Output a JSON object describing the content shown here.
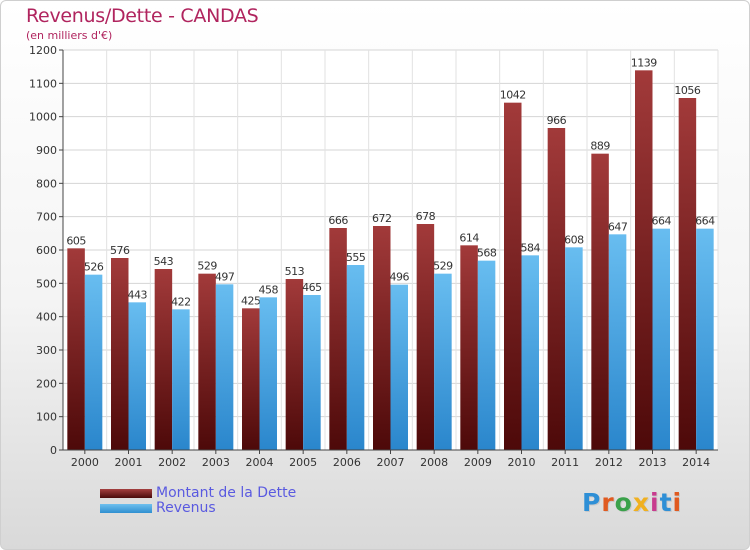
{
  "title": "Revenus/Dette - CANDAS",
  "subtitle": "(en milliers d'€)",
  "brand": "Proxiti",
  "colors": {
    "debt_top": "#a23a3a",
    "debt_bottom": "#4d0909",
    "revenue_top": "#68bdf0",
    "revenue_bottom": "#2a86cc",
    "title": "#b0245e",
    "legend_text": "#5a5ae0"
  },
  "chart_data": {
    "type": "bar",
    "title": "Revenus/Dette - CANDAS",
    "xlabel": "",
    "ylabel": "",
    "ylim": [
      0,
      1200
    ],
    "yticks": [
      0,
      100,
      200,
      300,
      400,
      500,
      600,
      700,
      800,
      900,
      1000,
      1100,
      1200
    ],
    "grid": "horizontal",
    "legend_position": "bottom-left",
    "categories": [
      "2000",
      "2001",
      "2002",
      "2003",
      "2004",
      "2005",
      "2006",
      "2007",
      "2008",
      "2009",
      "2010",
      "2011",
      "2012",
      "2013",
      "2014"
    ],
    "series": [
      {
        "name": "Montant de la Dette",
        "values": [
          605,
          576,
          543,
          529,
          425,
          513,
          666,
          672,
          678,
          614,
          1042,
          966,
          889,
          1139,
          1056
        ]
      },
      {
        "name": "Revenus",
        "values": [
          526,
          443,
          422,
          497,
          458,
          465,
          555,
          496,
          529,
          568,
          584,
          608,
          647,
          664,
          664
        ]
      }
    ]
  }
}
